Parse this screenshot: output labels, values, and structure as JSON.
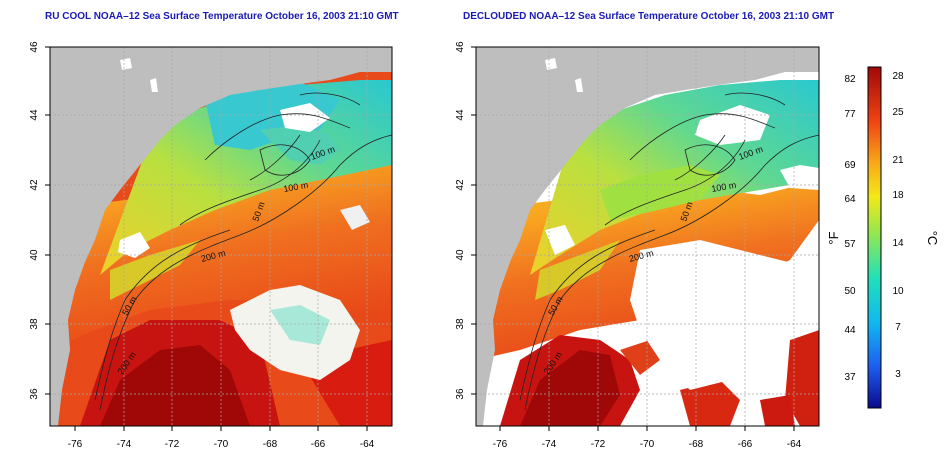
{
  "panels": [
    {
      "title": "RU COOL NOAA–12 Sea Surface Temperature October 16, 2003 21:10 GMT",
      "x_ticks": [
        "-76",
        "-74",
        "-72",
        "-70",
        "-68",
        "-66",
        "-64"
      ],
      "y_ticks": [
        "46",
        "44",
        "42",
        "40",
        "38",
        "36"
      ],
      "contour_labels": [
        "100 m",
        "100 m",
        "50 m",
        "200 m",
        "50 m",
        "200 m"
      ]
    },
    {
      "title": "DECLOUDED NOAA–12 Sea Surface Temperature October 16, 2003 21:10 GMT",
      "x_ticks": [
        "-76",
        "-74",
        "-72",
        "-70",
        "-68",
        "-66",
        "-64"
      ],
      "y_ticks": [
        "46",
        "44",
        "42",
        "40",
        "38",
        "36"
      ],
      "contour_labels": [
        "100 m",
        "100 m",
        "50 m",
        "200 m",
        "50 m",
        "200 m"
      ]
    }
  ],
  "colorbar": {
    "f_ticks": [
      "82",
      "77",
      "69",
      "64",
      "57",
      "50",
      "44",
      "37"
    ],
    "c_ticks": [
      "28",
      "25",
      "21",
      "18",
      "14",
      "10",
      "7",
      "3"
    ],
    "f_label": "°F",
    "c_label": "°C"
  }
}
